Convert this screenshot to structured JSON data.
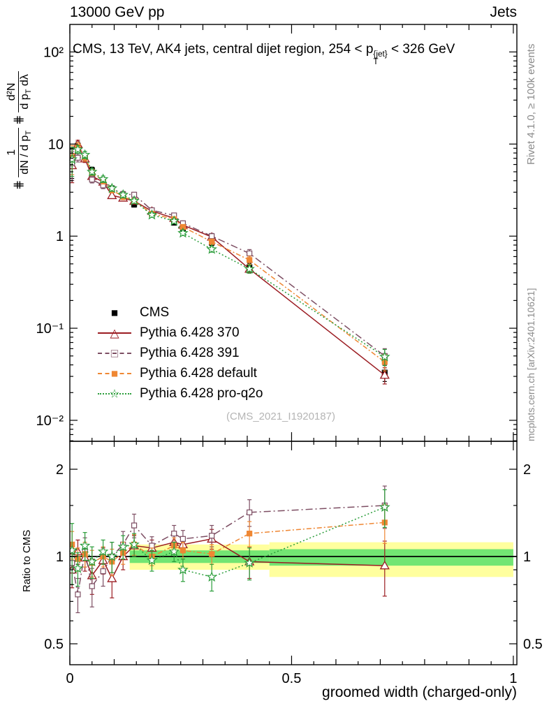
{
  "header": {
    "left": "13000 GeV pp",
    "right": "Jets"
  },
  "title": {
    "part1": "CMS, 13 TeV, AK4 jets, central dijet region, 254 < p",
    "sup": "{jet}",
    "sub": "T",
    "part2": " < 326 GeV"
  },
  "ylabel": {
    "hash": "⋕",
    "hash2": "⋕",
    "frac1_num": "1",
    "frac1_den": "dN / d p",
    "frac1_den_sub": "T",
    "frac2_num": "d²N",
    "frac2_den_a": "d p",
    "frac2_den_sub": "T",
    "frac2_den_b": " dλ"
  },
  "ratio_ylabel": "Ratio to CMS",
  "xlabel": "groomed width (charged-only)",
  "side_texts": {
    "right_top": "Rivet 4.1.0, ≥ 100k events",
    "right_bottom": "mcplots.cern.ch [arXiv:2401.10621]"
  },
  "watermark": "(CMS_2021_I1920187)",
  "chart_data": {
    "type": "line",
    "xlabel": "groomed width (charged-only)",
    "xlim": [
      0,
      1.008
    ],
    "x_major_ticks": [
      {
        "v": 0,
        "label": "0"
      },
      {
        "v": 0.5,
        "label": "0.5"
      },
      {
        "v": 1,
        "label": "1"
      }
    ],
    "x": [
      0.005,
      0.018,
      0.034,
      0.05,
      0.075,
      0.095,
      0.12,
      0.145,
      0.185,
      0.235,
      0.255,
      0.32,
      0.405,
      0.71
    ],
    "main": {
      "ylog": true,
      "ylim": [
        0.00592,
        199
      ],
      "yticks": [
        {
          "v": 100,
          "label": "10²"
        },
        {
          "v": 10,
          "label": "10"
        },
        {
          "v": 1,
          "label": "1"
        },
        {
          "v": 0.1,
          "label": "10⁻¹"
        },
        {
          "v": 0.01,
          "label": "10⁻²"
        }
      ],
      "err_rel": [
        0.35,
        0.1,
        0.09,
        0.08,
        0.08,
        0.07,
        0.07,
        0.06,
        0.06,
        0.06,
        0.06,
        0.07,
        0.1,
        0.2
      ],
      "series": [
        {
          "name": "CMS",
          "color": "#000000",
          "marker": "square",
          "fill": true,
          "line": "none",
          "values": [
            6.5,
            9.6,
            7.0,
            5.2,
            4.0,
            3.3,
            2.6,
            2.2,
            1.75,
            1.4,
            1.2,
            0.85,
            0.46,
            0.033
          ]
        },
        {
          "name": "Pythia 6.428 370",
          "color": "#9b1c22",
          "marker": "triangle",
          "fill": false,
          "line": "solid",
          "values": [
            5.85,
            9.98,
            6.93,
            4.47,
            3.88,
            2.77,
            2.6,
            2.4,
            1.87,
            1.57,
            1.32,
            0.98,
            0.44,
            0.031
          ]
        },
        {
          "name": "Pythia 6.428 391",
          "color": "#7d4e63",
          "marker": "square",
          "fill": false,
          "line": "dashdot",
          "values": [
            6.18,
            7.1,
            7.28,
            4.11,
            3.56,
            3.3,
            2.86,
            2.82,
            1.91,
            1.68,
            1.38,
            1.0,
            0.65,
            0.05
          ]
        },
        {
          "name": "Pythia 6.428 default",
          "color": "#ef8733",
          "marker": "square",
          "fill": true,
          "line": "dashdot2",
          "values": [
            7.15,
            9.41,
            7.14,
            4.94,
            4.0,
            3.17,
            2.68,
            2.42,
            1.75,
            1.53,
            1.26,
            0.87,
            0.55,
            0.043
          ]
        },
        {
          "name": "Pythia 6.428 pro-q2o",
          "color": "#2a9d3a",
          "marker": "star",
          "fill": false,
          "line": "dotted",
          "values": [
            6.83,
            8.74,
            7.63,
            4.99,
            4.16,
            3.3,
            2.81,
            2.42,
            1.7,
            1.46,
            1.08,
            0.72,
            0.44,
            0.049
          ]
        }
      ]
    },
    "ratio": {
      "ylog": true,
      "ylim": [
        0.4234,
        2.497
      ],
      "ref_line": 1,
      "yticks": [
        {
          "v": 2,
          "label": "2"
        },
        {
          "v": 1,
          "label": "1"
        },
        {
          "v": 0.5,
          "label": "0.5"
        }
      ],
      "y_minor": [
        0.6,
        0.7,
        0.8,
        0.9,
        1.5
      ],
      "bands": {
        "yellow": {
          "color": "#ffff9e",
          "segs": [
            {
              "x0": 0.135,
              "x1": 0.45,
              "lo": 0.9,
              "hi": 1.1
            },
            {
              "x0": 0.45,
              "x1": 1.0,
              "lo": 0.85,
              "hi": 1.12
            }
          ]
        },
        "green": {
          "color": "#73e573",
          "segs": [
            {
              "x0": 0.135,
              "x1": 0.45,
              "lo": 0.95,
              "hi": 1.05
            },
            {
              "x0": 0.45,
              "x1": 1.0,
              "lo": 0.93,
              "hi": 1.06
            }
          ]
        }
      },
      "series": [
        {
          "name": "Pythia 6.428 370",
          "color": "#9b1c22",
          "marker": "triangle",
          "fill": false,
          "line": "solid",
          "values": [
            0.9,
            1.04,
            0.99,
            0.86,
            0.97,
            0.84,
            1.0,
            1.09,
            1.07,
            1.12,
            1.1,
            1.15,
            0.96,
            0.93
          ],
          "err": [
            0.12,
            0.1,
            0.1,
            0.12,
            0.1,
            0.12,
            0.1,
            0.09,
            0.07,
            0.07,
            0.07,
            0.09,
            0.12,
            0.2
          ]
        },
        {
          "name": "Pythia 6.428 391",
          "color": "#7d4e63",
          "marker": "square",
          "fill": false,
          "line": "dashdot",
          "values": [
            0.95,
            0.74,
            1.04,
            0.79,
            0.89,
            1.0,
            1.1,
            1.28,
            1.09,
            1.2,
            1.15,
            1.18,
            1.42,
            1.5
          ],
          "err": [
            0.15,
            0.1,
            0.12,
            0.12,
            0.1,
            0.12,
            0.12,
            0.12,
            0.08,
            0.08,
            0.08,
            0.1,
            0.15,
            0.25
          ]
        },
        {
          "name": "Pythia 6.428 default",
          "color": "#ef8733",
          "marker": "square",
          "fill": true,
          "line": "dashdot2",
          "values": [
            1.1,
            0.98,
            1.02,
            0.95,
            1.0,
            0.96,
            1.03,
            1.1,
            1.0,
            1.09,
            1.05,
            1.02,
            1.2,
            1.31
          ],
          "err": [
            0.12,
            0.09,
            0.1,
            0.1,
            0.08,
            0.1,
            0.09,
            0.09,
            0.07,
            0.07,
            0.07,
            0.08,
            0.12,
            0.2
          ]
        },
        {
          "name": "Pythia 6.428 pro-q2o",
          "color": "#2a9d3a",
          "marker": "star",
          "fill": false,
          "line": "dotted",
          "values": [
            1.05,
            0.91,
            1.09,
            0.96,
            1.04,
            1.0,
            1.08,
            1.1,
            0.97,
            1.04,
            0.9,
            0.85,
            0.95,
            1.48
          ],
          "err": [
            0.25,
            0.12,
            0.12,
            0.12,
            0.1,
            0.12,
            0.1,
            0.1,
            0.08,
            0.08,
            0.08,
            0.09,
            0.12,
            0.22
          ]
        }
      ]
    }
  }
}
